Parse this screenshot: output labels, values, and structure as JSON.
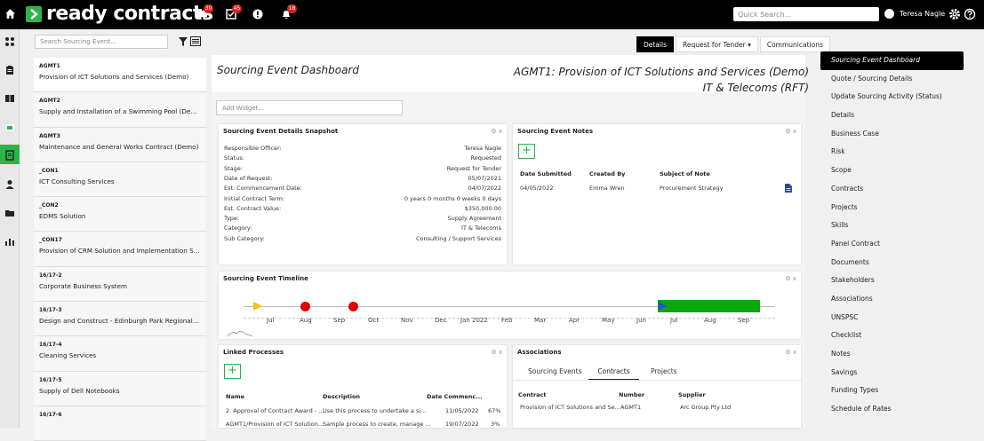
{
  "brand": {
    "name": "ready contracts",
    "accent": "#2eb34a"
  },
  "topbar": {
    "badges": {
      "chat": "30",
      "tasks": "45",
      "alerts": "18"
    },
    "search_placeholder": "Quick Search...",
    "user_name": "Teresa Nagle"
  },
  "list": {
    "search_placeholder": "Search Sourcing Event...",
    "items": [
      {
        "code": "AGMT1",
        "title": "Provision of ICT Solutions and Services (Demo)"
      },
      {
        "code": "AGMT2",
        "title": "Supply and Installation of a Swimming Pool (Demo)"
      },
      {
        "code": "AGMT3",
        "title": "Maintenance and General Works Contract (Demo)"
      },
      {
        "code": "_CON1",
        "title": "ICT Consulting Services"
      },
      {
        "code": "_CON2",
        "title": "EDMS Solution"
      },
      {
        "code": "_CON17",
        "title": "Provision of CRM Solution and Implementation Ser..."
      },
      {
        "code": "16/17-2",
        "title": "Corporate Business System"
      },
      {
        "code": "16/17-3",
        "title": "Design and Construct - Edinburgh Park Regional Dr..."
      },
      {
        "code": "16/17-4",
        "title": "Cleaning Services"
      },
      {
        "code": "16/17-5",
        "title": "Supply of Dell Notebooks"
      },
      {
        "code": "16/17-6",
        "title": ""
      }
    ]
  },
  "tabs": {
    "details": "Details",
    "request": "Request for Tender",
    "communications": "Communications"
  },
  "header": {
    "dashboard_title": "Sourcing Event Dashboard",
    "event_title_line1": "AGMT1: Provision of ICT Solutions and Services (Demo)",
    "event_title_line2": "IT & Telecoms (RFT)",
    "add_widget_placeholder": "Add Widget..."
  },
  "snapshot": {
    "title": "Sourcing Event Details Snapshot",
    "rows": [
      {
        "label": "Responsible Officer:",
        "value": "Teresa Nagle"
      },
      {
        "label": "Status:",
        "value": "Requested"
      },
      {
        "label": "Stage:",
        "value": "Request for Tender"
      },
      {
        "label": "Date of Request:",
        "value": "05/07/2021"
      },
      {
        "label": "Est. Commencement Date:",
        "value": "04/07/2022"
      },
      {
        "label": "Initial Contract Term:",
        "value": "0 years 0 months 0 weeks 0 days"
      },
      {
        "label": "Est. Contract Value:",
        "value": "$350,000.00"
      },
      {
        "label": "Type:",
        "value": "Supply Agreement"
      },
      {
        "label": "Category:",
        "value": "IT & Telecoms"
      },
      {
        "label": "Sub Category:",
        "value": "Consulting / Support Services"
      }
    ]
  },
  "notes": {
    "title": "Sourcing Event Notes",
    "columns": [
      "Date Submitted",
      "Created By",
      "Subject of Note"
    ],
    "rows": [
      {
        "date": "04/05/2022",
        "by": "Emma Wren",
        "subject": "Procurement Strategy"
      }
    ]
  },
  "timeline": {
    "title": "Sourcing Event Timeline",
    "months": [
      "Jul",
      "Aug",
      "Sep",
      "Oct",
      "Nov",
      "Dec",
      "Jan 2022",
      "Feb",
      "Mar",
      "Apr",
      "May",
      "Jun",
      "Jul",
      "Aug",
      "Sep"
    ],
    "colors": {
      "bar": "#0ca70c",
      "dot": "#e00000",
      "start": "#f4c400",
      "marker": "#2050e0"
    }
  },
  "linked": {
    "title": "Linked Processes",
    "columns": [
      "Name",
      "Description",
      "Date Commenc..."
    ],
    "rows": [
      {
        "name": "2. Approval of Contract Award - ...",
        "desc": "Use this process to undertake a si...",
        "date": "11/05/2022",
        "pct": "67%"
      },
      {
        "name": "AGMT1/Provision of ICT Solution...",
        "desc": "Sample process to create, manage ...",
        "date": "19/07/2022",
        "pct": "3%"
      }
    ]
  },
  "associations": {
    "title": "Associations",
    "tabs": [
      "Sourcing Events",
      "Contracts",
      "Projects"
    ],
    "columns": [
      "Contract",
      "Number",
      "Supplier"
    ],
    "rows": [
      {
        "contract": "Provision of ICT Solutions and Se...",
        "number": "AGMT1",
        "supplier": "Arc Group Pty Ltd"
      }
    ]
  },
  "rightnav": {
    "items": [
      "Sourcing Event Dashboard",
      "Quote / Sourcing Details",
      "Update Sourcing Activity (Status)",
      "Details",
      "Business Case",
      "Risk",
      "Scope",
      "Contracts",
      "Projects",
      "Skills",
      "Panel Contract",
      "Documents",
      "Stakeholders",
      "Associations",
      "UNSPSC",
      "Checklist",
      "Notes",
      "Savings",
      "Funding Types",
      "Schedule of Rates"
    ]
  }
}
